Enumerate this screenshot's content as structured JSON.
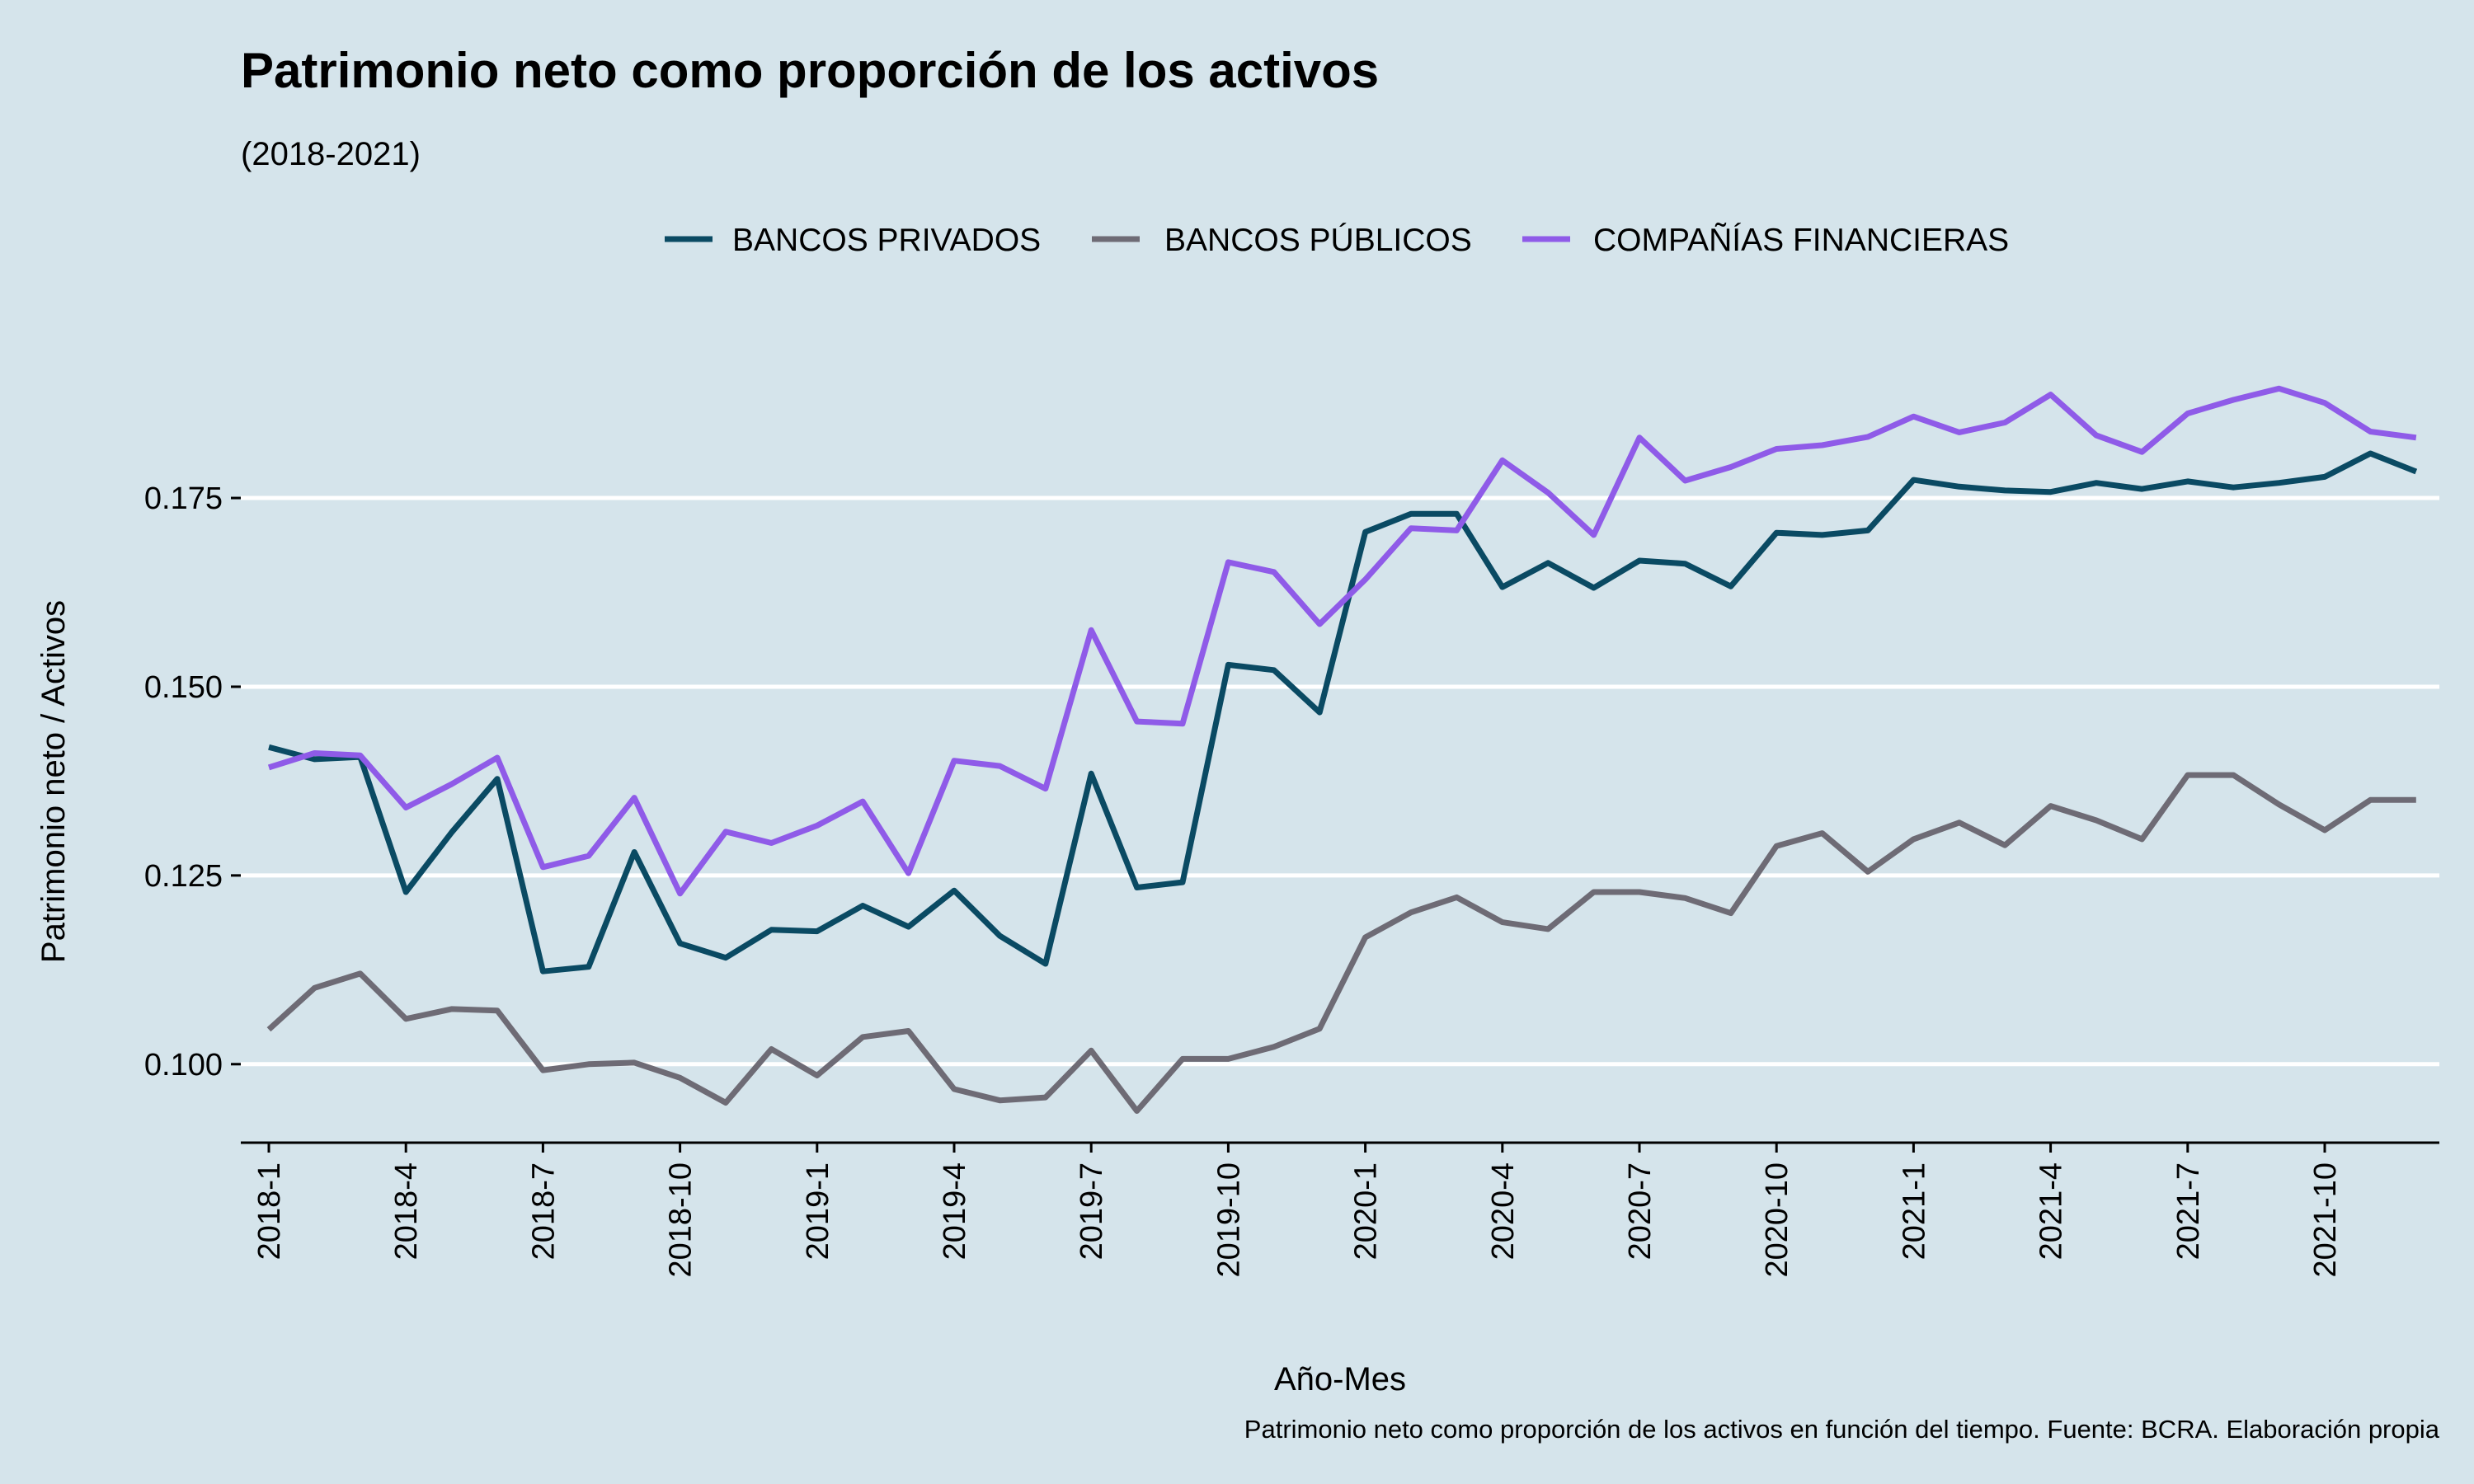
{
  "chart_data": {
    "type": "line",
    "title": "Patrimonio neto como proporción de los activos",
    "subtitle": "(2018-2021)",
    "xlabel": "Año-Mes",
    "ylabel": "Patrimonio neto / Activos",
    "caption": "Patrimonio neto como proporción de los activos en función del tiempo. Fuente: BCRA. Elaboración propia",
    "legend_position": "top",
    "grid": "horizontal",
    "ylim": [
      0.0896,
      0.2022
    ],
    "y_ticks": [
      "0.100",
      "0.125",
      "0.150",
      "0.175"
    ],
    "y_tick_values": [
      0.1,
      0.125,
      0.15,
      0.175
    ],
    "x_tick_labels": [
      "2018-1",
      "2018-4",
      "2018-7",
      "2018-10",
      "2019-1",
      "2019-4",
      "2019-7",
      "2019-10",
      "2020-1",
      "2020-4",
      "2020-7",
      "2020-10",
      "2021-1",
      "2021-4",
      "2021-7",
      "2021-10"
    ],
    "x_tick_indices": [
      0,
      3,
      6,
      9,
      12,
      15,
      18,
      21,
      24,
      27,
      30,
      33,
      36,
      39,
      42,
      45
    ],
    "x": [
      "2018-1",
      "2018-2",
      "2018-3",
      "2018-4",
      "2018-5",
      "2018-6",
      "2018-7",
      "2018-8",
      "2018-9",
      "2018-10",
      "2018-11",
      "2018-12",
      "2019-1",
      "2019-2",
      "2019-3",
      "2019-4",
      "2019-5",
      "2019-6",
      "2019-7",
      "2019-8",
      "2019-9",
      "2019-10",
      "2019-11",
      "2019-12",
      "2020-1",
      "2020-2",
      "2020-3",
      "2020-4",
      "2020-5",
      "2020-6",
      "2020-7",
      "2020-8",
      "2020-9",
      "2020-10",
      "2020-11",
      "2020-12",
      "2021-1",
      "2021-2",
      "2021-3",
      "2021-4",
      "2021-5",
      "2021-6",
      "2021-7",
      "2021-8",
      "2021-9",
      "2021-10",
      "2021-11",
      "2021-12"
    ],
    "series": [
      {
        "name": "BANCOS PRIVADOS",
        "color": "#0a4a63",
        "values": [
          0.142,
          0.1404,
          0.1407,
          0.1228,
          0.1307,
          0.1378,
          0.1123,
          0.1129,
          0.1281,
          0.116,
          0.1141,
          0.1178,
          0.1176,
          0.121,
          0.1182,
          0.123,
          0.117,
          0.1133,
          0.1385,
          0.1234,
          0.1241,
          0.1529,
          0.1522,
          0.1466,
          0.1705,
          0.1729,
          0.1729,
          0.1632,
          0.1664,
          0.1631,
          0.1667,
          0.1663,
          0.1633,
          0.1704,
          0.1701,
          0.1707,
          0.1774,
          0.1765,
          0.176,
          0.1758,
          0.177,
          0.1762,
          0.1772,
          0.1764,
          0.177,
          0.1778,
          0.1809,
          0.1785
        ]
      },
      {
        "name": "BANCOS PÚBLICOS",
        "color": "#6e6b75",
        "values": [
          0.1046,
          0.1101,
          0.112,
          0.106,
          0.1073,
          0.1071,
          0.0992,
          0.1,
          0.1002,
          0.0982,
          0.0949,
          0.102,
          0.0985,
          0.1036,
          0.1044,
          0.0967,
          0.0952,
          0.0956,
          0.1018,
          0.0938,
          0.1007,
          0.1007,
          0.1023,
          0.1047,
          0.1168,
          0.1201,
          0.1221,
          0.1188,
          0.1179,
          0.1228,
          0.1228,
          0.122,
          0.12,
          0.1289,
          0.1306,
          0.1255,
          0.1298,
          0.132,
          0.129,
          0.1342,
          0.1323,
          0.1298,
          0.1383,
          0.1383,
          0.1344,
          0.131,
          0.135,
          0.135
        ]
      },
      {
        "name": "COMPAÑÍAS FINANCIERAS",
        "color": "#8f5be8",
        "values": [
          0.1393,
          0.1412,
          0.1409,
          0.134,
          0.1371,
          0.1406,
          0.1261,
          0.1276,
          0.1353,
          0.1226,
          0.1308,
          0.1293,
          0.1316,
          0.1348,
          0.1253,
          0.1402,
          0.1395,
          0.1365,
          0.1575,
          0.1454,
          0.1451,
          0.1665,
          0.1652,
          0.1583,
          0.1642,
          0.171,
          0.1707,
          0.18,
          0.1757,
          0.1701,
          0.183,
          0.1773,
          0.1791,
          0.1815,
          0.182,
          0.1831,
          0.1858,
          0.1837,
          0.185,
          0.1887,
          0.1833,
          0.1811,
          0.1862,
          0.188,
          0.1895,
          0.1876,
          0.1838,
          0.183
        ]
      }
    ]
  }
}
